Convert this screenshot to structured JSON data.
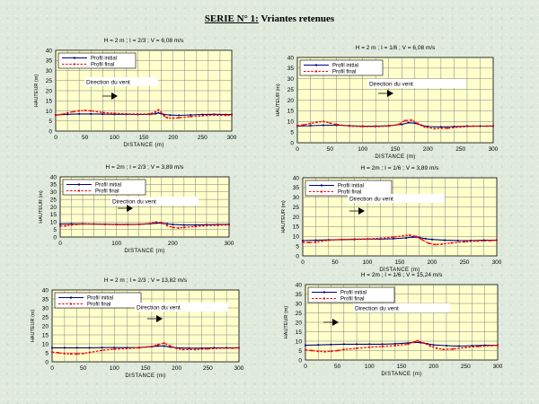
{
  "page": {
    "title_series": "SERIE N° 1:",
    "title_rest": " Vriantes retenues"
  },
  "colors": {
    "plot_bg": "#ffffcc",
    "grid": "#808080",
    "initial": "#000080",
    "final": "#ff0000",
    "wind_box": "#ffffff"
  },
  "chart_data": [
    {
      "type": "line",
      "title": "H = 2 m   ; I = 2/3   ;  V = 6,08 m/s",
      "xlabel": "DISTANCE (m)",
      "ylabel": "HAUTEUR (m)",
      "xlim": [
        0,
        300
      ],
      "ylim": [
        0,
        40
      ],
      "xticks": [
        0,
        50,
        100,
        150,
        200,
        250,
        300
      ],
      "yticks": [
        0,
        5,
        10,
        15,
        20,
        25,
        30,
        35,
        40
      ],
      "grid": true,
      "legend_position": "top-left",
      "annotation": "Direction du vent",
      "series": [
        {
          "name": "Profil initial",
          "style": "solid",
          "x": [
            0,
            20,
            40,
            60,
            80,
            100,
            120,
            140,
            160,
            170,
            175,
            180,
            185,
            195,
            210,
            230,
            250,
            270,
            290,
            300
          ],
          "y": [
            8,
            8.3,
            8.5,
            8.5,
            8.4,
            8.3,
            8.3,
            8.2,
            8.3,
            8.6,
            9.0,
            8.6,
            8.2,
            7.9,
            7.8,
            8.0,
            8.2,
            8.3,
            8.2,
            8.2
          ]
        },
        {
          "name": "Profil final",
          "style": "dashed",
          "x": [
            0,
            10,
            20,
            30,
            40,
            50,
            60,
            80,
            100,
            120,
            140,
            160,
            170,
            175,
            180,
            185,
            190,
            200,
            210,
            230,
            250,
            270,
            290,
            300
          ],
          "y": [
            7.8,
            8.3,
            9.0,
            9.6,
            10.0,
            10.2,
            10.0,
            9.2,
            8.8,
            8.5,
            8.4,
            8.5,
            9.5,
            10.5,
            9.2,
            7.4,
            6.6,
            6.4,
            6.6,
            7.2,
            7.6,
            7.9,
            7.8,
            7.9
          ]
        }
      ]
    },
    {
      "type": "line",
      "title": "H = 2 m   ; I = 1/6   ;  V = 6,08 m/s",
      "xlabel": "DISTANCE (m)",
      "ylabel": "HAUTEUR (m)",
      "xlim": [
        0,
        300
      ],
      "ylim": [
        0,
        40
      ],
      "xticks": [
        0,
        50,
        100,
        150,
        200,
        250,
        300
      ],
      "yticks": [
        0,
        5,
        10,
        15,
        20,
        25,
        30,
        35,
        40
      ],
      "grid": true,
      "legend_position": "top-left",
      "annotation": "Direction du vent",
      "series": [
        {
          "name": "Profil initial",
          "style": "solid",
          "x": [
            0,
            20,
            40,
            60,
            80,
            100,
            120,
            140,
            160,
            170,
            180,
            190,
            200,
            220,
            240,
            260,
            280,
            300
          ],
          "y": [
            7.8,
            8.0,
            8.2,
            8.2,
            8.0,
            7.8,
            7.8,
            8.0,
            8.6,
            9.4,
            9.2,
            8.2,
            7.6,
            7.4,
            7.6,
            7.8,
            7.8,
            7.8
          ]
        },
        {
          "name": "Profil final",
          "style": "dashed",
          "x": [
            0,
            10,
            20,
            30,
            40,
            50,
            60,
            80,
            100,
            120,
            140,
            155,
            165,
            175,
            185,
            195,
            210,
            230,
            250,
            270,
            290,
            300
          ],
          "y": [
            8.0,
            8.4,
            9.0,
            9.6,
            10.0,
            9.2,
            8.6,
            7.8,
            7.6,
            7.6,
            7.8,
            8.6,
            10.4,
            10.6,
            9.0,
            7.4,
            6.6,
            6.8,
            7.4,
            7.8,
            7.8,
            8.0
          ]
        }
      ]
    },
    {
      "type": "line",
      "title": "H = 2m   ; I = 2/3   ;  V = 3,89 m/s",
      "xlabel": "DISTANCE (m)",
      "ylabel": "HAUTEUR (m)",
      "xlim": [
        0,
        300
      ],
      "ylim": [
        0,
        40
      ],
      "xticks": [
        0,
        100,
        200,
        300
      ],
      "yticks": [
        0,
        5,
        10,
        15,
        20,
        25,
        30,
        35,
        40
      ],
      "grid": true,
      "legend_position": "top-left",
      "annotation": "Direction du vent",
      "series": [
        {
          "name": "Profil initial",
          "style": "solid",
          "x": [
            0,
            20,
            40,
            60,
            80,
            100,
            120,
            140,
            160,
            170,
            180,
            190,
            200,
            220,
            240,
            260,
            280,
            300
          ],
          "y": [
            8.6,
            8.8,
            8.8,
            8.6,
            8.5,
            8.4,
            8.4,
            8.5,
            8.8,
            9.2,
            9.2,
            8.8,
            8.3,
            8.0,
            8.0,
            8.2,
            8.3,
            8.4
          ]
        },
        {
          "name": "Profil final",
          "style": "dashed",
          "x": [
            0,
            10,
            20,
            30,
            40,
            60,
            80,
            100,
            120,
            140,
            160,
            170,
            180,
            190,
            200,
            210,
            220,
            240,
            260,
            280,
            300
          ],
          "y": [
            7.2,
            7.4,
            8.0,
            8.4,
            8.6,
            8.6,
            8.4,
            8.2,
            8.2,
            8.4,
            9.0,
            10.0,
            9.6,
            7.6,
            6.4,
            6.0,
            6.4,
            7.0,
            7.6,
            7.8,
            8.0
          ]
        }
      ]
    },
    {
      "type": "line",
      "title": "H = 2m   ; I = 1/6   ;  V = 3,89 m/s",
      "xlabel": "DISTANCE (m)",
      "ylabel": "HAUTEUR (m)",
      "xlim": [
        0,
        300
      ],
      "ylim": [
        0,
        40
      ],
      "xticks": [
        0,
        50,
        100,
        150,
        200,
        250,
        300
      ],
      "yticks": [
        0,
        5,
        10,
        15,
        20,
        25,
        30,
        35,
        40
      ],
      "grid": true,
      "legend_position": "top-left",
      "annotation": "Direction du vent",
      "series": [
        {
          "name": "Profil initial",
          "style": "solid",
          "x": [
            0,
            20,
            40,
            60,
            80,
            100,
            120,
            140,
            160,
            170,
            180,
            190,
            200,
            220,
            240,
            260,
            280,
            300
          ],
          "y": [
            7.8,
            8.0,
            8.2,
            8.3,
            8.4,
            8.6,
            8.6,
            8.8,
            9.2,
            9.6,
            9.4,
            8.8,
            8.4,
            8.0,
            7.8,
            7.8,
            8.0,
            8.0
          ]
        },
        {
          "name": "Profil final",
          "style": "dashed",
          "x": [
            0,
            10,
            20,
            30,
            40,
            60,
            80,
            100,
            120,
            140,
            155,
            165,
            175,
            185,
            195,
            205,
            215,
            230,
            250,
            270,
            290,
            300
          ],
          "y": [
            7.0,
            6.8,
            7.0,
            7.6,
            8.0,
            8.4,
            8.6,
            8.6,
            9.0,
            9.6,
            10.2,
            10.6,
            10.0,
            8.2,
            6.4,
            5.8,
            6.0,
            6.6,
            7.2,
            7.6,
            7.8,
            8.0
          ]
        }
      ]
    },
    {
      "type": "line",
      "title": "H = 2 m ; I = 2/3 ; V = 13,82 m/s",
      "xlabel": "DISTANCE (m)",
      "ylabel": "HAUTEUR (m)",
      "xlim": [
        0,
        300
      ],
      "ylim": [
        0,
        40
      ],
      "xticks": [
        0,
        50,
        100,
        150,
        200,
        250,
        300
      ],
      "yticks": [
        0,
        5,
        10,
        15,
        20,
        25,
        30,
        35,
        40
      ],
      "grid": true,
      "legend_position": "top-left",
      "annotation": "Direction du vent",
      "series": [
        {
          "name": "Profil initial",
          "style": "solid",
          "x": [
            0,
            20,
            40,
            60,
            80,
            100,
            120,
            140,
            160,
            170,
            180,
            190,
            200,
            220,
            240,
            260,
            280,
            300
          ],
          "y": [
            7.8,
            7.8,
            7.8,
            7.8,
            7.9,
            7.9,
            7.9,
            8.0,
            8.4,
            8.8,
            8.8,
            8.2,
            7.8,
            7.6,
            7.6,
            7.8,
            7.8,
            7.8
          ]
        },
        {
          "name": "Profil final",
          "style": "dashed",
          "x": [
            0,
            10,
            20,
            30,
            40,
            50,
            60,
            80,
            100,
            120,
            140,
            160,
            170,
            180,
            190,
            200,
            210,
            230,
            250,
            270,
            290,
            300
          ],
          "y": [
            5.4,
            5.0,
            4.6,
            4.4,
            4.4,
            4.6,
            5.2,
            6.4,
            7.0,
            7.4,
            7.8,
            8.6,
            9.6,
            10.4,
            8.8,
            7.4,
            6.8,
            6.8,
            7.2,
            7.6,
            7.6,
            7.8
          ]
        }
      ]
    },
    {
      "type": "line",
      "title": "H = 2m  ; I = 1/6  ; V = 15,24 m/s",
      "xlabel": "DISTANCE (m)",
      "ylabel": "HAUTEUR (m)",
      "xlim": [
        0,
        300
      ],
      "ylim": [
        0,
        40
      ],
      "xticks": [
        0,
        50,
        100,
        150,
        200,
        250,
        300
      ],
      "yticks": [
        0,
        5,
        10,
        15,
        20,
        25,
        30,
        35,
        40
      ],
      "grid": true,
      "legend_position": "top-left",
      "annotation": "Direction du vent",
      "series": [
        {
          "name": "Profil initial",
          "style": "solid",
          "x": [
            0,
            20,
            40,
            60,
            80,
            100,
            120,
            140,
            160,
            170,
            180,
            190,
            200,
            220,
            240,
            260,
            280,
            300
          ],
          "y": [
            7.8,
            8.0,
            8.2,
            8.4,
            8.4,
            8.4,
            8.4,
            8.6,
            9.0,
            9.4,
            9.2,
            8.6,
            8.0,
            7.6,
            7.4,
            7.6,
            7.8,
            7.8
          ]
        },
        {
          "name": "Profil final",
          "style": "dashed",
          "x": [
            0,
            10,
            20,
            30,
            40,
            50,
            60,
            80,
            100,
            120,
            140,
            160,
            170,
            175,
            185,
            195,
            205,
            215,
            230,
            250,
            270,
            290,
            300
          ],
          "y": [
            5.4,
            5.0,
            4.6,
            4.4,
            4.6,
            5.0,
            5.6,
            6.2,
            6.8,
            7.2,
            7.6,
            8.4,
            9.6,
            10.2,
            9.0,
            7.4,
            6.2,
            5.6,
            5.8,
            6.6,
            7.2,
            7.6,
            7.8
          ]
        }
      ]
    }
  ]
}
